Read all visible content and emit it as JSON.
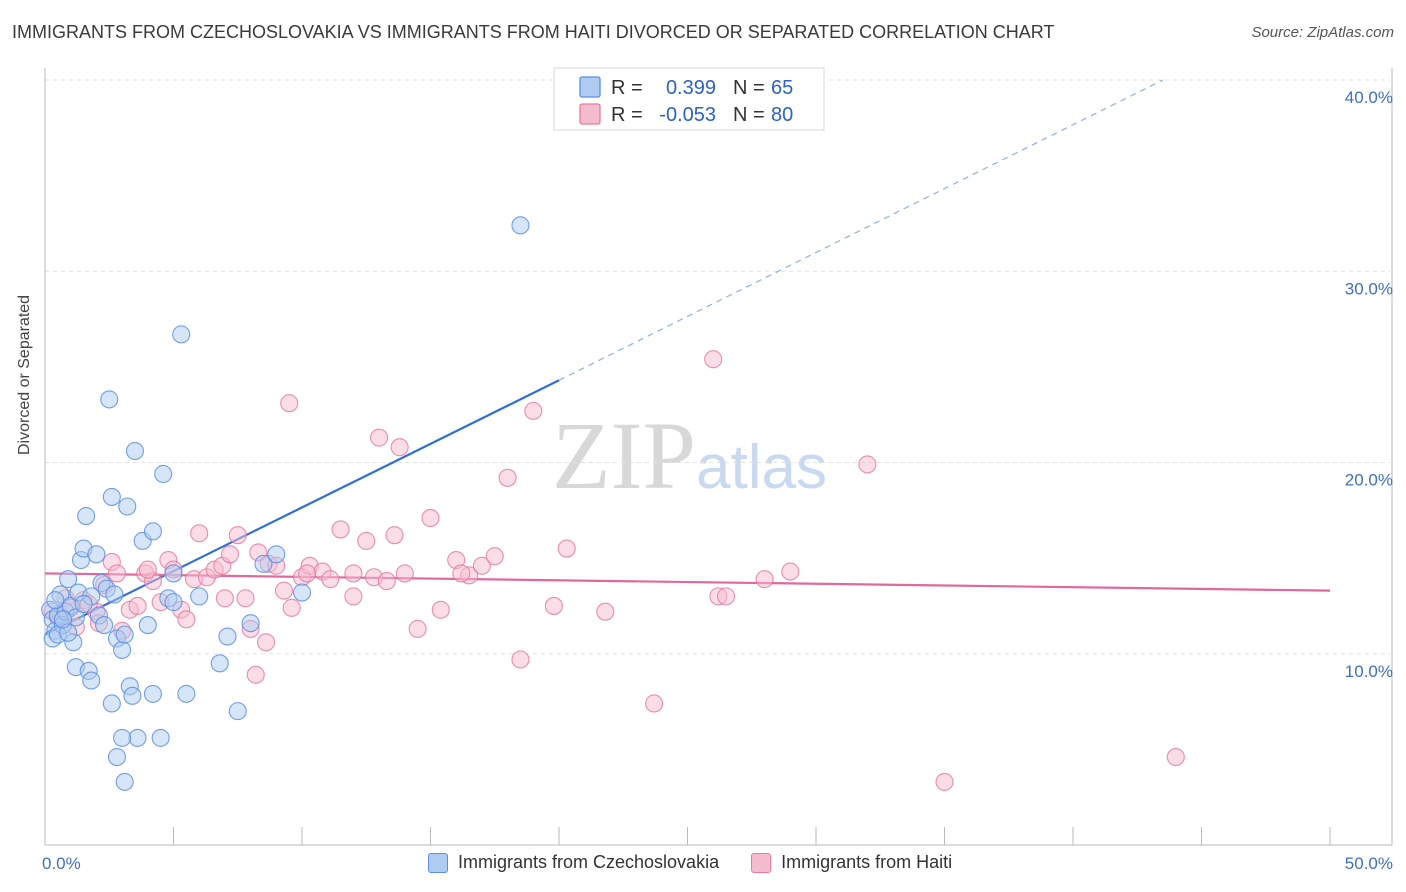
{
  "chart_data": {
    "type": "scatter",
    "title": "IMMIGRANTS FROM CZECHOSLOVAKIA VS IMMIGRANTS FROM HAITI DIVORCED OR SEPARATED CORRELATION CHART",
    "source": "Source: ZipAtlas.com",
    "ylabel": "Divorced or Separated",
    "xlim": [
      0,
      50
    ],
    "ylim": [
      0,
      40
    ],
    "x_ticks": [
      "0.0%",
      "50.0%"
    ],
    "y_ticks": [
      {
        "value": 10,
        "label": "10.0%"
      },
      {
        "value": 20,
        "label": "20.0%"
      },
      {
        "value": 30,
        "label": "30.0%"
      },
      {
        "value": 40,
        "label": "40.0%"
      }
    ],
    "series": [
      {
        "name": "Immigrants from Czechoslovakia",
        "color": "#5b8ee6",
        "fill": "#aecbf0",
        "r_label": "R =",
        "r_value": "0.399",
        "n_label": "N =",
        "n_value": "65",
        "trend": {
          "x0": 0,
          "y0": 11.0,
          "x1": 20,
          "y1": 24.3,
          "dash_x1": 43.5,
          "dash_y1": 40.0
        },
        "points": [
          [
            0.2,
            12.3
          ],
          [
            0.3,
            11.8
          ],
          [
            0.4,
            11.2
          ],
          [
            0.5,
            12.0
          ],
          [
            0.3,
            10.8
          ],
          [
            0.6,
            13.1
          ],
          [
            0.7,
            11.5
          ],
          [
            0.8,
            12.2
          ],
          [
            0.9,
            13.9
          ],
          [
            1.0,
            12.5
          ],
          [
            0.5,
            11.0
          ],
          [
            1.1,
            10.6
          ],
          [
            0.4,
            12.8
          ],
          [
            1.2,
            11.9
          ],
          [
            1.3,
            13.2
          ],
          [
            1.4,
            14.9
          ],
          [
            1.5,
            15.5
          ],
          [
            1.6,
            17.2
          ],
          [
            1.8,
            13.0
          ],
          [
            2.0,
            15.2
          ],
          [
            2.1,
            12.0
          ],
          [
            2.2,
            13.7
          ],
          [
            2.3,
            11.5
          ],
          [
            2.4,
            13.4
          ],
          [
            2.5,
            23.3
          ],
          [
            2.6,
            18.2
          ],
          [
            2.7,
            13.1
          ],
          [
            2.8,
            10.8
          ],
          [
            3.0,
            10.2
          ],
          [
            3.1,
            11.0
          ],
          [
            3.2,
            17.7
          ],
          [
            3.3,
            8.3
          ],
          [
            3.4,
            7.8
          ],
          [
            3.5,
            20.6
          ],
          [
            3.6,
            5.6
          ],
          [
            3.0,
            5.6
          ],
          [
            2.8,
            4.6
          ],
          [
            3.1,
            3.3
          ],
          [
            3.8,
            15.9
          ],
          [
            4.0,
            11.5
          ],
          [
            4.2,
            16.4
          ],
          [
            4.5,
            5.6
          ],
          [
            4.6,
            19.4
          ],
          [
            4.2,
            7.9
          ],
          [
            4.8,
            12.9
          ],
          [
            5.0,
            14.2
          ],
          [
            5.3,
            26.7
          ],
          [
            5.0,
            12.7
          ],
          [
            5.5,
            7.9
          ],
          [
            6.0,
            13.0
          ],
          [
            6.8,
            9.5
          ],
          [
            7.1,
            10.9
          ],
          [
            7.5,
            7.0
          ],
          [
            8.0,
            11.6
          ],
          [
            8.5,
            14.7
          ],
          [
            9.0,
            15.2
          ],
          [
            10.0,
            13.2
          ],
          [
            18.5,
            32.4
          ],
          [
            1.2,
            9.3
          ],
          [
            1.7,
            9.1
          ],
          [
            1.8,
            8.6
          ],
          [
            2.6,
            7.4
          ],
          [
            0.9,
            11.1
          ],
          [
            1.5,
            12.6
          ],
          [
            0.7,
            11.8
          ]
        ]
      },
      {
        "name": "Immigrants from Haiti",
        "color": "#e87aa0",
        "fill": "#f5bccf",
        "r_label": "R =",
        "r_value": "-0.053",
        "n_label": "N =",
        "n_value": "80",
        "trend": {
          "x0": 0,
          "y0": 14.2,
          "x1": 50,
          "y1": 13.3
        },
        "points": [
          [
            0.3,
            12.2
          ],
          [
            0.5,
            11.9
          ],
          [
            0.8,
            12.9
          ],
          [
            1.0,
            12.4
          ],
          [
            1.2,
            11.4
          ],
          [
            1.5,
            12.8
          ],
          [
            2.0,
            12.2
          ],
          [
            2.3,
            13.6
          ],
          [
            2.6,
            14.8
          ],
          [
            2.8,
            14.2
          ],
          [
            3.0,
            11.2
          ],
          [
            3.3,
            12.3
          ],
          [
            3.6,
            12.5
          ],
          [
            3.9,
            14.2
          ],
          [
            4.2,
            13.8
          ],
          [
            4.5,
            12.7
          ],
          [
            4.8,
            14.9
          ],
          [
            5.0,
            14.4
          ],
          [
            5.3,
            12.3
          ],
          [
            5.5,
            11.8
          ],
          [
            5.8,
            13.9
          ],
          [
            6.0,
            16.3
          ],
          [
            6.3,
            14.0
          ],
          [
            6.6,
            14.4
          ],
          [
            6.9,
            14.6
          ],
          [
            7.2,
            15.2
          ],
          [
            7.5,
            16.2
          ],
          [
            7.8,
            12.9
          ],
          [
            8.0,
            11.3
          ],
          [
            8.3,
            15.3
          ],
          [
            8.7,
            14.7
          ],
          [
            9.0,
            14.6
          ],
          [
            9.3,
            13.3
          ],
          [
            9.6,
            12.4
          ],
          [
            10.0,
            14.0
          ],
          [
            10.3,
            14.6
          ],
          [
            10.8,
            14.3
          ],
          [
            11.1,
            13.9
          ],
          [
            11.5,
            16.5
          ],
          [
            12.0,
            14.2
          ],
          [
            12.5,
            15.9
          ],
          [
            12.8,
            14.0
          ],
          [
            13.0,
            21.3
          ],
          [
            13.3,
            13.8
          ],
          [
            13.6,
            16.2
          ],
          [
            14.0,
            14.2
          ],
          [
            14.5,
            11.3
          ],
          [
            15.0,
            17.1
          ],
          [
            15.4,
            12.3
          ],
          [
            16.0,
            14.9
          ],
          [
            16.5,
            14.1
          ],
          [
            17.0,
            14.6
          ],
          [
            17.5,
            15.1
          ],
          [
            18.0,
            19.2
          ],
          [
            18.5,
            9.7
          ],
          [
            19.0,
            22.7
          ],
          [
            19.8,
            12.5
          ],
          [
            20.3,
            15.5
          ],
          [
            21.8,
            12.2
          ],
          [
            23.7,
            7.4
          ],
          [
            26.0,
            25.4
          ],
          [
            26.2,
            13.0
          ],
          [
            26.5,
            13.0
          ],
          [
            28.0,
            13.9
          ],
          [
            29.0,
            14.3
          ],
          [
            32.0,
            19.9
          ],
          [
            35.0,
            3.3
          ],
          [
            44.0,
            4.6
          ],
          [
            9.5,
            23.1
          ],
          [
            12.0,
            13.0
          ],
          [
            8.2,
            8.9
          ],
          [
            10.2,
            14.2
          ],
          [
            13.8,
            20.8
          ],
          [
            7.0,
            12.9
          ],
          [
            1.7,
            12.6
          ],
          [
            0.6,
            12.0
          ],
          [
            2.1,
            11.6
          ],
          [
            8.6,
            10.6
          ],
          [
            4.0,
            14.4
          ],
          [
            16.2,
            14.2
          ]
        ]
      }
    ]
  },
  "bottom_legend": {
    "items": [
      "Immigrants from Czechoslovakia",
      "Immigrants from Haiti"
    ]
  },
  "watermark": {
    "zip": "ZIP",
    "atlas": "atlas"
  }
}
